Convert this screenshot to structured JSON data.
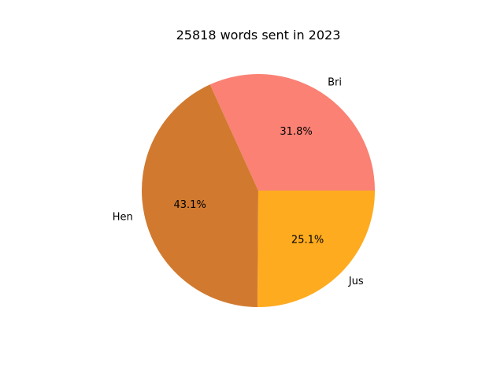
{
  "chart_data": {
    "type": "pie",
    "title": "25818 words sent in 2023",
    "slices": [
      {
        "label": "Bri",
        "value": 31.8,
        "pct_label": "31.8%",
        "color": "#fa8174"
      },
      {
        "label": "Hen",
        "value": 43.1,
        "pct_label": "43.1%",
        "color": "#d17a2f"
      },
      {
        "label": "Jus",
        "value": 25.1,
        "pct_label": "25.1%",
        "color": "#feab1f"
      }
    ],
    "start_angle_deg": 0,
    "direction": "counterclockwise"
  }
}
